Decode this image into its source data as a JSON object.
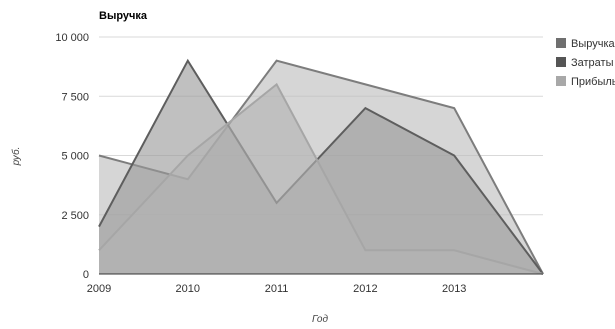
{
  "chart_data": {
    "type": "area",
    "title": "Выручка",
    "xlabel": "Год",
    "ylabel": "руб.",
    "x": [
      2009,
      2010,
      2011,
      2012,
      2013,
      2014
    ],
    "x_tick_labels": [
      "2009",
      "2010",
      "2011",
      "2012",
      "2013"
    ],
    "y_ticks": [
      0,
      2500,
      5000,
      7500,
      10000
    ],
    "y_tick_labels": [
      "0",
      "2 500",
      "5 000",
      "7 500",
      "10 000"
    ],
    "ylim": [
      0,
      10000
    ],
    "grid": true,
    "legend_position": "right",
    "series": [
      {
        "name": "Выручка",
        "values": [
          5000,
          4000,
          9000,
          8000,
          7000,
          0
        ],
        "fill": "#bdbdbd",
        "stroke": "#7d7d7d",
        "legend_color": "#6f6f6f"
      },
      {
        "name": "Затраты",
        "values": [
          2000,
          9000,
          3000,
          7000,
          5000,
          0
        ],
        "fill": "#9a9a9a",
        "stroke": "#5e5e5e",
        "legend_color": "#555555"
      },
      {
        "name": "Прибыль",
        "values": [
          1000,
          5000,
          8000,
          1000,
          1000,
          0
        ],
        "fill": "#b3b3b3",
        "stroke": "#a6a6a6",
        "legend_color": "#a8a8a8"
      }
    ]
  }
}
